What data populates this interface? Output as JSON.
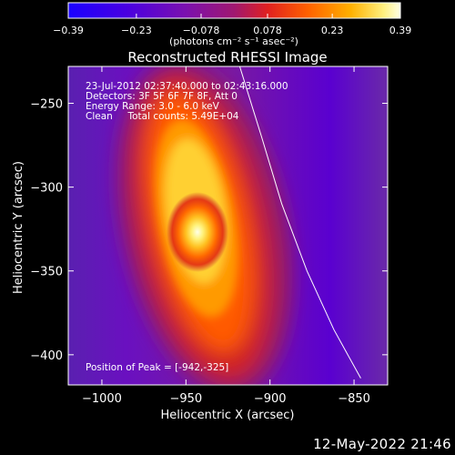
{
  "chart_data": {
    "type": "heatmap",
    "title": "Reconstructed RHESSI Image",
    "xlabel": "Heliocentric X (arcsec)",
    "ylabel": "Heliocentric Y (arcsec)",
    "xlim": [
      -1020,
      -830
    ],
    "ylim": [
      -418,
      -228
    ],
    "x_ticks": [
      -1000,
      -950,
      -900,
      -850
    ],
    "x_tick_labels": [
      "−1000",
      "−950",
      "−900",
      "−850"
    ],
    "y_ticks": [
      -250,
      -300,
      -350,
      -400
    ],
    "y_tick_labels": [
      "−250",
      "−300",
      "−350",
      "−400"
    ],
    "peak": {
      "x": -942,
      "y": -325
    },
    "annotations": {
      "line1": "23-Jul-2012 02:37:40.000 to 02:43:16.000",
      "line2": "Detectors: 3F 5F 6F 7F 8F, Att 0",
      "line3": "Energy Range: 3.0 - 6.0 keV",
      "line4": "Clean     Total counts: 5.49E+04",
      "peak_label": "Position of Peak = [-942,-325]"
    },
    "colorbar": {
      "range": [
        -0.39,
        0.39
      ],
      "ticks": [
        -0.39,
        -0.23,
        -0.078,
        0.078,
        0.23,
        0.39
      ],
      "tick_labels": [
        "−0.39",
        "−0.23",
        "−0.078",
        "0.078",
        "0.23",
        "0.39"
      ],
      "unit_label": "(photons cm⁻² s⁻¹ asec⁻²)",
      "colors": [
        "#1a00ff",
        "#5a00c8",
        "#8a1a9a",
        "#c0203a",
        "#ff3a00",
        "#ff9a00",
        "#ffe040",
        "#ffffe6"
      ]
    },
    "limb_curve": [
      [
        -918,
        -228
      ],
      [
        -905,
        -270
      ],
      [
        -893,
        -310
      ],
      [
        -878,
        -350
      ],
      [
        -862,
        -385
      ],
      [
        -846,
        -414
      ]
    ]
  },
  "footer": {
    "date": "12-May-2022 21:46"
  }
}
